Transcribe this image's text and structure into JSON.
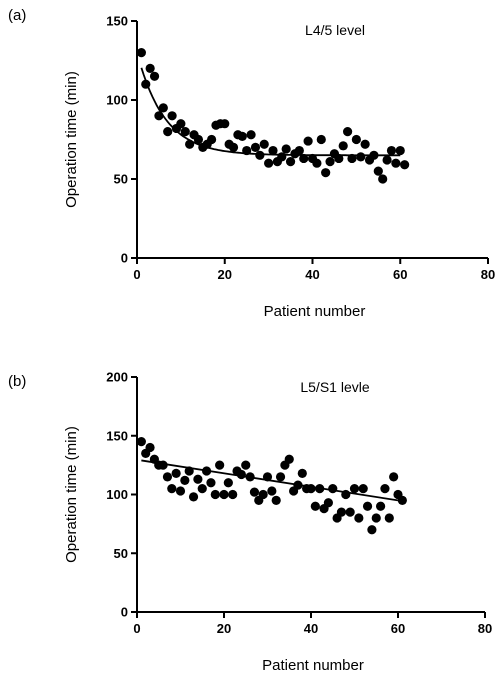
{
  "chart_data": [
    {
      "type": "scatter",
      "panel_label": "(a)",
      "annotation": "L4/5 level",
      "xlabel": "Patient number",
      "ylabel": "Operation time (min)",
      "xlim": [
        0,
        80
      ],
      "ylim": [
        0,
        150
      ],
      "xticks": [
        "0",
        "20",
        "40",
        "60",
        "80"
      ],
      "yticks": [
        "0",
        "50",
        "100",
        "150"
      ],
      "trend": "exponential decay fit",
      "trend_params": {
        "plateau": 65,
        "amplitude": 65,
        "rate": 0.16
      },
      "points": [
        [
          1,
          130
        ],
        [
          2,
          110
        ],
        [
          3,
          120
        ],
        [
          4,
          115
        ],
        [
          5,
          90
        ],
        [
          6,
          95
        ],
        [
          7,
          80
        ],
        [
          8,
          90
        ],
        [
          9,
          82
        ],
        [
          10,
          85
        ],
        [
          11,
          80
        ],
        [
          12,
          72
        ],
        [
          13,
          78
        ],
        [
          14,
          75
        ],
        [
          15,
          70
        ],
        [
          16,
          72
        ],
        [
          17,
          75
        ],
        [
          18,
          84
        ],
        [
          19,
          85
        ],
        [
          20,
          85
        ],
        [
          21,
          72
        ],
        [
          22,
          70
        ],
        [
          23,
          78
        ],
        [
          24,
          77
        ],
        [
          25,
          68
        ],
        [
          26,
          78
        ],
        [
          27,
          70
        ],
        [
          28,
          65
        ],
        [
          29,
          72
        ],
        [
          30,
          60
        ],
        [
          31,
          68
        ],
        [
          32,
          61
        ],
        [
          33,
          64
        ],
        [
          34,
          69
        ],
        [
          35,
          61
        ],
        [
          36,
          66
        ],
        [
          37,
          68
        ],
        [
          38,
          63
        ],
        [
          39,
          74
        ],
        [
          40,
          63
        ],
        [
          41,
          60
        ],
        [
          42,
          75
        ],
        [
          43,
          54
        ],
        [
          44,
          61
        ],
        [
          45,
          66
        ],
        [
          46,
          63
        ],
        [
          47,
          71
        ],
        [
          48,
          80
        ],
        [
          49,
          63
        ],
        [
          50,
          75
        ],
        [
          51,
          64
        ],
        [
          52,
          72
        ],
        [
          53,
          62
        ],
        [
          54,
          65
        ],
        [
          55,
          55
        ],
        [
          56,
          50
        ],
        [
          57,
          62
        ],
        [
          58,
          68
        ],
        [
          59,
          60
        ],
        [
          60,
          68
        ],
        [
          61,
          59
        ]
      ]
    },
    {
      "type": "scatter",
      "panel_label": "(b)",
      "annotation": "L5/S1 levle",
      "xlabel": "Patient number",
      "ylabel": "Operation time (min)",
      "xlim": [
        0,
        80
      ],
      "ylim": [
        0,
        200
      ],
      "xticks": [
        "0",
        "20",
        "40",
        "60",
        "80"
      ],
      "yticks": [
        "0",
        "50",
        "100",
        "150",
        "200"
      ],
      "trend": "linear fit",
      "trend_line": [
        [
          1,
          129
        ],
        [
          60,
          95
        ]
      ],
      "points": [
        [
          1,
          145
        ],
        [
          2,
          135
        ],
        [
          3,
          140
        ],
        [
          4,
          130
        ],
        [
          5,
          125
        ],
        [
          6,
          125
        ],
        [
          7,
          115
        ],
        [
          8,
          105
        ],
        [
          9,
          118
        ],
        [
          10,
          103
        ],
        [
          11,
          112
        ],
        [
          12,
          120
        ],
        [
          13,
          98
        ],
        [
          14,
          113
        ],
        [
          15,
          105
        ],
        [
          16,
          120
        ],
        [
          17,
          110
        ],
        [
          18,
          100
        ],
        [
          19,
          125
        ],
        [
          20,
          100
        ],
        [
          21,
          110
        ],
        [
          22,
          100
        ],
        [
          23,
          120
        ],
        [
          24,
          117
        ],
        [
          25,
          125
        ],
        [
          26,
          115
        ],
        [
          27,
          102
        ],
        [
          28,
          95
        ],
        [
          29,
          100
        ],
        [
          30,
          115
        ],
        [
          31,
          103
        ],
        [
          32,
          95
        ],
        [
          33,
          115
        ],
        [
          34,
          125
        ],
        [
          35,
          130
        ],
        [
          36,
          103
        ],
        [
          37,
          108
        ],
        [
          38,
          118
        ],
        [
          39,
          105
        ],
        [
          40,
          105
        ],
        [
          41,
          90
        ],
        [
          42,
          105
        ],
        [
          43,
          88
        ],
        [
          44,
          93
        ],
        [
          45,
          105
        ],
        [
          46,
          80
        ],
        [
          47,
          85
        ],
        [
          48,
          100
        ],
        [
          49,
          85
        ],
        [
          50,
          105
        ],
        [
          51,
          80
        ],
        [
          52,
          105
        ],
        [
          53,
          90
        ],
        [
          54,
          70
        ],
        [
          55,
          80
        ],
        [
          56,
          90
        ],
        [
          57,
          105
        ],
        [
          58,
          80
        ],
        [
          59,
          115
        ],
        [
          60,
          100
        ],
        [
          61,
          95
        ]
      ]
    }
  ]
}
